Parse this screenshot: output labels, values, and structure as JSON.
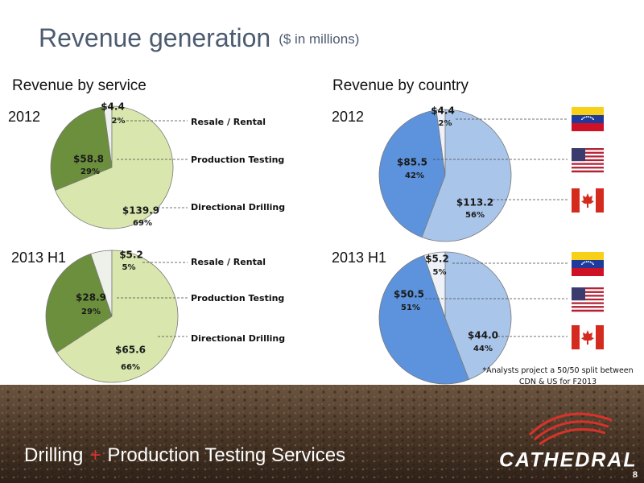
{
  "header": {
    "title": "Revenue generation",
    "subtitle": "($ in millions)"
  },
  "sections": [
    "Revenue by service",
    "Revenue by country"
  ],
  "chart_data": [
    {
      "type": "pie",
      "subtitle": "2012",
      "categories": [
        "Resale / Rental",
        "Production Testing",
        "Directional Drilling"
      ],
      "values": [
        4.4,
        58.8,
        139.9
      ],
      "value_labels": [
        "$4.4",
        "$58.8",
        "$139.9"
      ],
      "percent_labels": [
        "2%",
        "29%",
        "69%"
      ],
      "colors": [
        "#eef1ea",
        "#6b8f3c",
        "#d9e7ae"
      ]
    },
    {
      "type": "pie",
      "subtitle": "2013 H1",
      "categories": [
        "Resale / Rental",
        "Production Testing",
        "Directional Drilling"
      ],
      "values": [
        5.2,
        28.9,
        65.6
      ],
      "value_labels": [
        "$5.2",
        "$28.9",
        "$65.6"
      ],
      "percent_labels": [
        "5%",
        "29%",
        "66%"
      ],
      "colors": [
        "#eef1ea",
        "#6b8f3c",
        "#d9e7ae"
      ]
    },
    {
      "type": "pie",
      "subtitle": "2012",
      "categories": [
        null,
        null,
        null
      ],
      "values": [
        4.4,
        85.5,
        113.2
      ],
      "value_labels": [
        "$4.4",
        "$85.5",
        "$113.2"
      ],
      "percent_labels": [
        "2%",
        "42%",
        "56%"
      ],
      "colors": [
        "#eef2f8",
        "#5c93dc",
        "#a9c5ea"
      ]
    },
    {
      "type": "pie",
      "subtitle": "2013 H1",
      "categories": [
        null,
        null,
        null
      ],
      "values": [
        5.2,
        50.5,
        44.0
      ],
      "value_labels": [
        "$5.2",
        "$50.5",
        "$44.0"
      ],
      "percent_labels": [
        "5%",
        "51%",
        "44%"
      ],
      "colors": [
        "#eef2f8",
        "#5c93dc",
        "#a9c5ea"
      ],
      "note": "*Analysts project a 50/50 split between CDN & US for F2013"
    }
  ],
  "footer": {
    "tagline_start": "Drilling",
    "tagline_plus": "+",
    "tagline_end": "Production Testing Services",
    "logo": "CATHEDRAL",
    "page": 8
  }
}
